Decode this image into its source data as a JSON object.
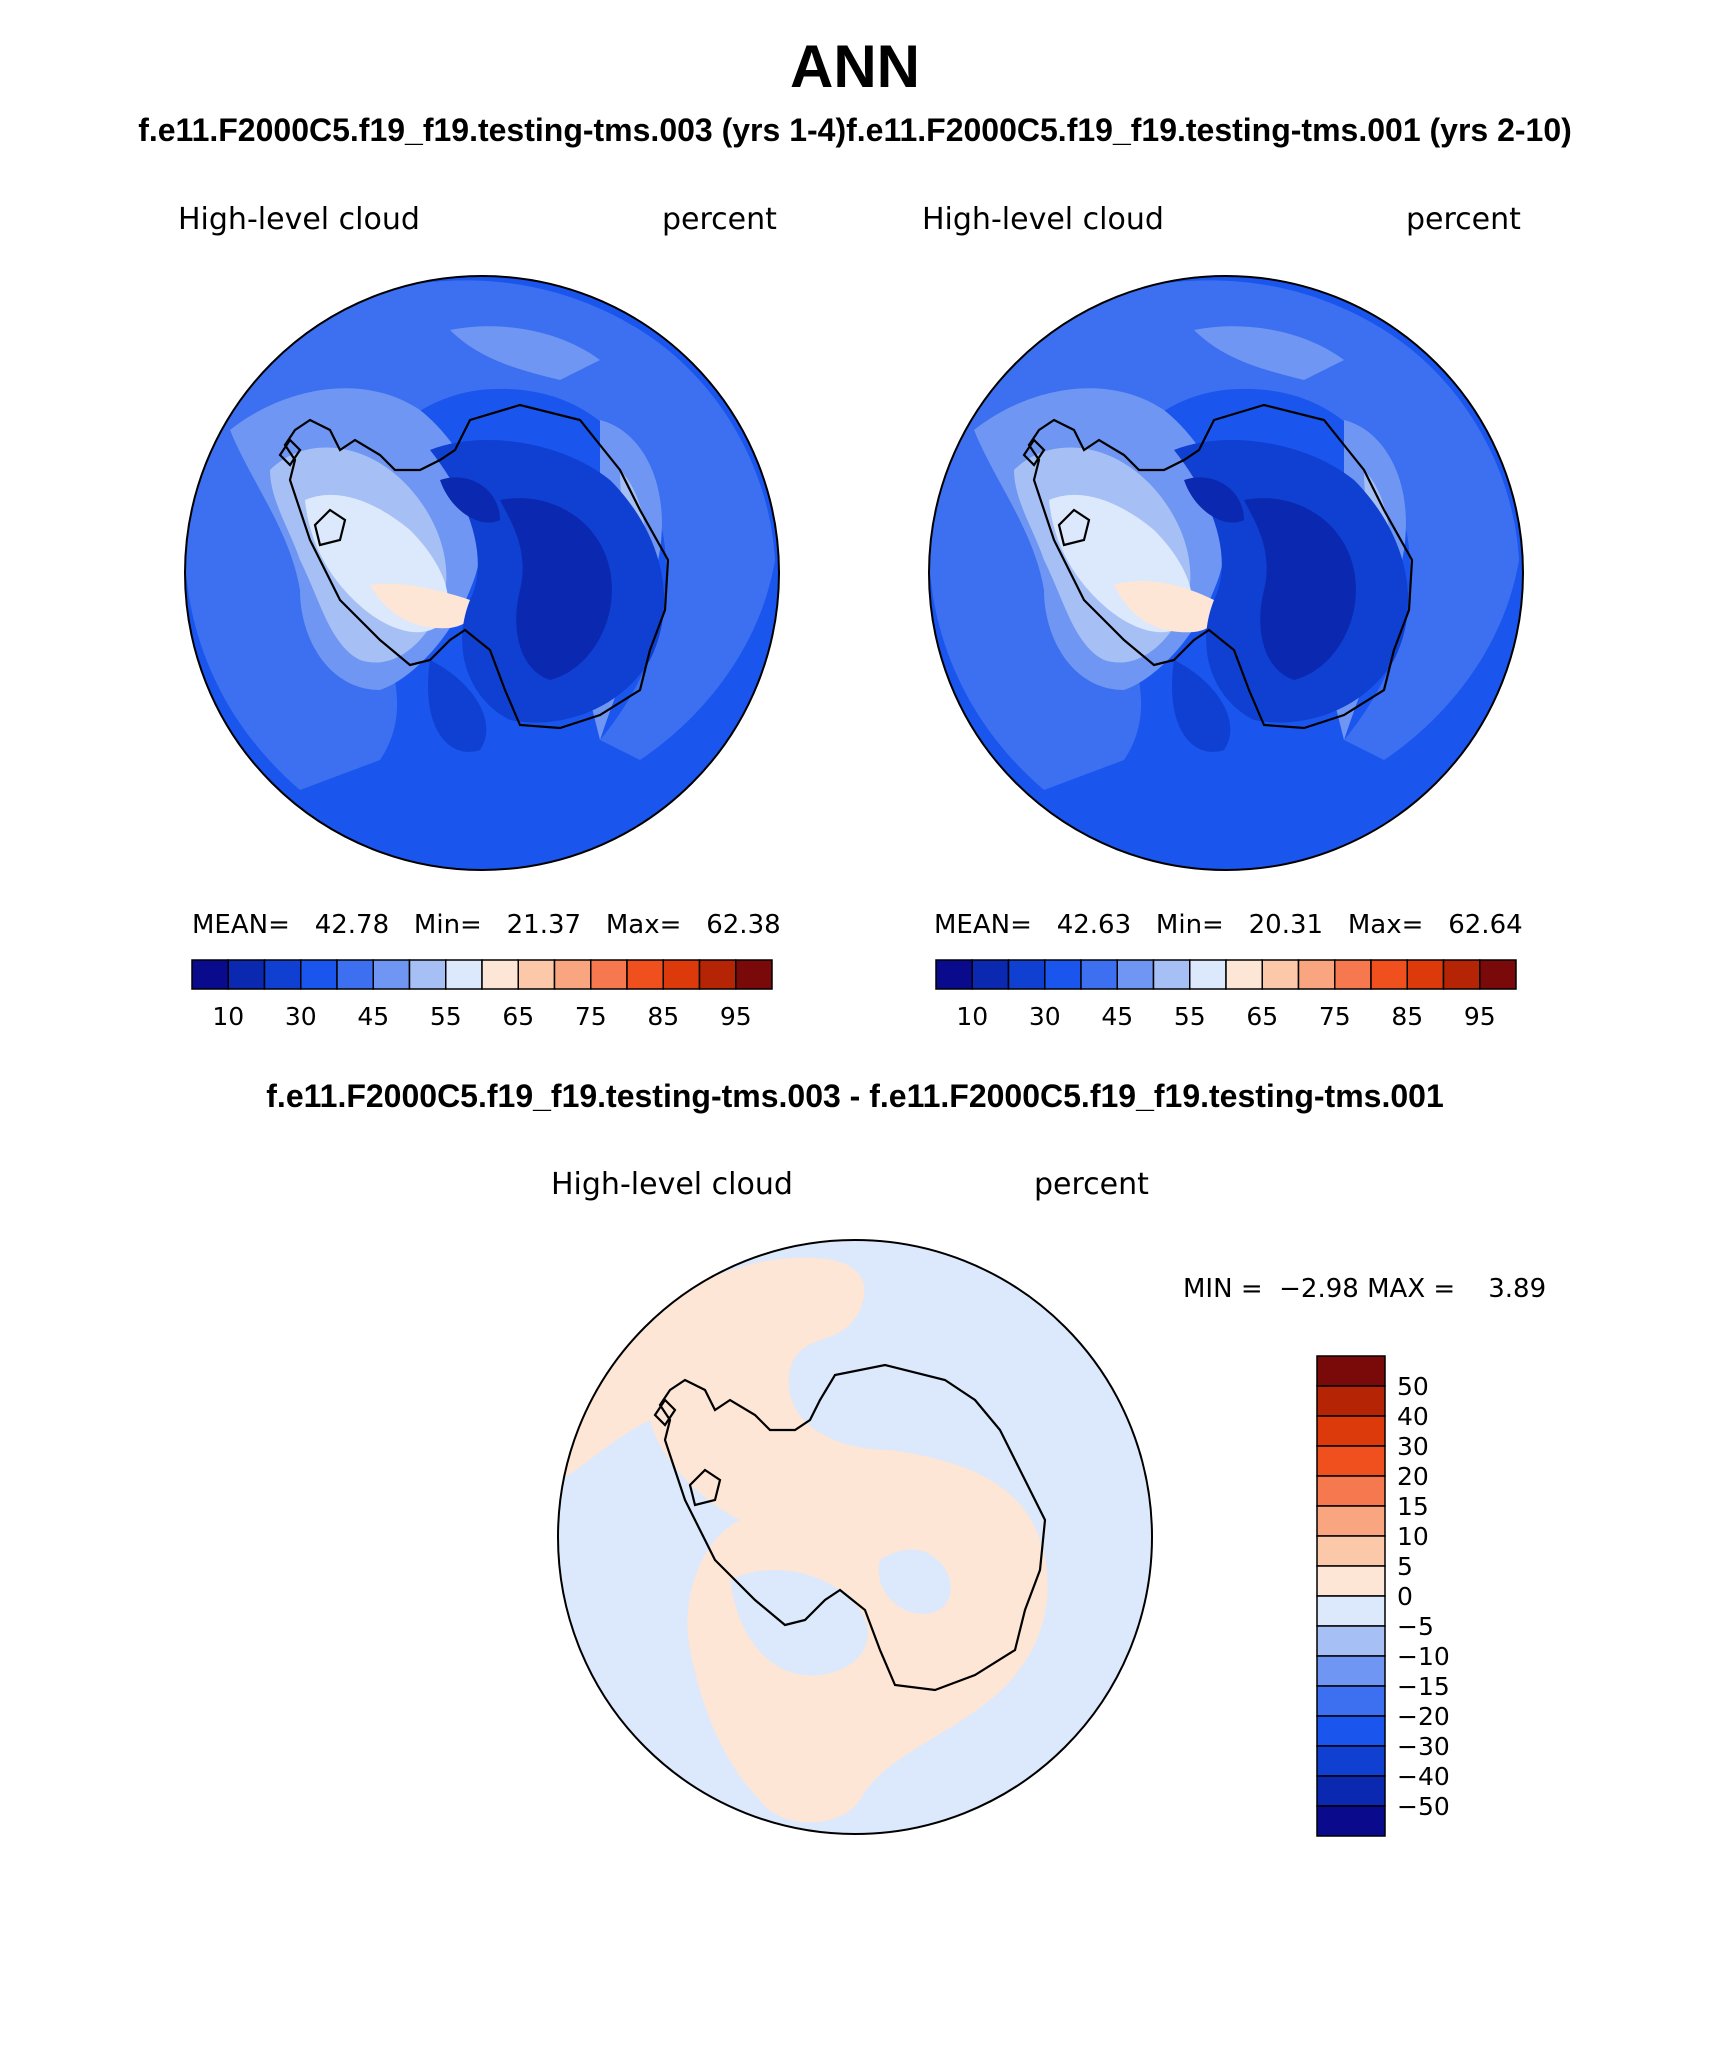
{
  "figure": {
    "title": "ANN",
    "subtitle_left": "f.e11.F2000C5.f19_f19.testing-tms.003 (yrs 1-4)",
    "subtitle_right": "f.e11.F2000C5.f19_f19.testing-tms.001 (yrs 2-10)",
    "diff_title": "f.e11.F2000C5.f19_f19.testing-tms.003 - f.e11.F2000C5.f19_f19.testing-tms.001"
  },
  "colors": {
    "abs_scale": [
      "#0a0a8c",
      "#0a28b0",
      "#0f40d2",
      "#1a55ee",
      "#3c70f0",
      "#6e96f2",
      "#a6c0f5",
      "#dce8fb",
      "#fde6d6",
      "#fcc8aa",
      "#f9a680",
      "#f5784e",
      "#f0501e",
      "#dc3a0a",
      "#b42405",
      "#7a0a0a"
    ],
    "diff_scale": [
      "#0a0a8c",
      "#0a28b0",
      "#0f40d2",
      "#1a55ee",
      "#3c70f0",
      "#6e96f2",
      "#a6c0f5",
      "#dce8fb",
      "#fde6d6",
      "#fcc8aa",
      "#f9a680",
      "#f5784e",
      "#f0501e",
      "#dc3a0a",
      "#b42405",
      "#7a0a0a"
    ],
    "coast": "#000000"
  },
  "chart_data": [
    {
      "type": "heatmap",
      "projection": "south-polar-stereographic",
      "title": "High-level cloud",
      "units": "percent",
      "mean_label": "MEAN=",
      "mean": "42.78",
      "min_label": "Min=",
      "min": "21.37",
      "max_label": "Max=",
      "max": "62.38",
      "levels": [
        10,
        20,
        30,
        35,
        45,
        50,
        55,
        60,
        65,
        70,
        75,
        80,
        85,
        90,
        95
      ],
      "level_labels": [
        "10",
        "30",
        "45",
        "55",
        "65",
        "75",
        "85",
        "95"
      ]
    },
    {
      "type": "heatmap",
      "projection": "south-polar-stereographic",
      "title": "High-level cloud",
      "units": "percent",
      "mean_label": "MEAN=",
      "mean": "42.63",
      "min_label": "Min=",
      "min": "20.31",
      "max_label": "Max=",
      "max": "62.64",
      "levels": [
        10,
        20,
        30,
        35,
        45,
        50,
        55,
        60,
        65,
        70,
        75,
        80,
        85,
        90,
        95
      ],
      "level_labels": [
        "10",
        "30",
        "45",
        "55",
        "65",
        "75",
        "85",
        "95"
      ]
    },
    {
      "type": "heatmap",
      "projection": "south-polar-stereographic",
      "title": "High-level cloud",
      "units": "percent",
      "min_label": "MIN =",
      "min": "−2.98",
      "max_label": "MAX =",
      "max": "3.89",
      "levels": [
        -50,
        -40,
        -30,
        -20,
        -15,
        -10,
        -5,
        0,
        5,
        10,
        15,
        20,
        30,
        40,
        50
      ],
      "level_labels": [
        "50",
        "40",
        "30",
        "20",
        "15",
        "10",
        "5",
        "0",
        "−5",
        "−10",
        "−15",
        "−20",
        "−30",
        "−40",
        "−50"
      ]
    }
  ]
}
